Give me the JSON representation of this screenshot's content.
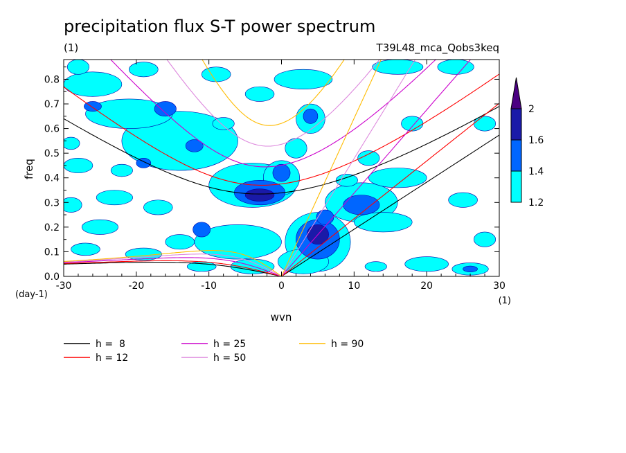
{
  "chart_data": {
    "type": "heatmap",
    "title": "precipitation flux S-T power spectrum",
    "subtitle_left": "(1)",
    "subtitle_right": "T39L48_mca_Qobs3keq",
    "xlabel": "wvn",
    "ylabel": "freq",
    "x_unit": "(1)",
    "y_unit": "(day-1)",
    "xlim": [
      -30,
      30
    ],
    "ylim": [
      0,
      0.88
    ],
    "x_ticks": [
      -30,
      -20,
      -10,
      0,
      10,
      20,
      30
    ],
    "x_tick_labels": [
      "-30",
      "-20",
      "-10",
      "0",
      "10",
      "20",
      "30"
    ],
    "y_ticks": [
      0.0,
      0.1,
      0.2,
      0.3,
      0.4,
      0.5,
      0.6,
      0.7,
      0.8
    ],
    "y_tick_labels": [
      "0.0",
      "0.1",
      "0.2",
      "0.3",
      "0.4",
      "0.5",
      "0.6",
      "0.7",
      "0.8"
    ],
    "colorbar": {
      "levels": [
        1.2,
        1.4,
        1.6,
        2
      ],
      "labels": [
        "1.2",
        "1.4",
        "1.6",
        "2"
      ],
      "colors": [
        "#00ffff",
        "#0066ff",
        "#1a1aa8",
        "#4b0082"
      ]
    },
    "dispersion_curves": [
      {
        "name": "h =  8",
        "h": 8,
        "color": "#000000"
      },
      {
        "name": "h = 12",
        "h": 12,
        "color": "#ff0000"
      },
      {
        "name": "h = 25",
        "h": 25,
        "color": "#cc00cc"
      },
      {
        "name": "h = 50",
        "h": 50,
        "color": "#dd88dd"
      },
      {
        "name": "h = 90",
        "h": 90,
        "color": "#ffbb00"
      }
    ],
    "blobs": [
      {
        "x": -3,
        "y": 0.33,
        "rx": 2.0,
        "ry": 0.025,
        "level": 3
      },
      {
        "x": -3,
        "y": 0.34,
        "rx": 3.5,
        "ry": 0.05,
        "level": 2
      },
      {
        "x": -4,
        "y": 0.37,
        "rx": 6.0,
        "ry": 0.09,
        "level": 1
      },
      {
        "x": 0,
        "y": 0.42,
        "rx": 1.2,
        "ry": 0.035,
        "level": 2
      },
      {
        "x": 0,
        "y": 0.4,
        "rx": 2.5,
        "ry": 0.07,
        "level": 1
      },
      {
        "x": -14,
        "y": 0.55,
        "rx": 8,
        "ry": 0.12,
        "level": 1
      },
      {
        "x": -16,
        "y": 0.68,
        "rx": 1.5,
        "ry": 0.03,
        "level": 2
      },
      {
        "x": -12,
        "y": 0.53,
        "rx": 1.2,
        "ry": 0.025,
        "level": 2
      },
      {
        "x": -21,
        "y": 0.66,
        "rx": 6,
        "ry": 0.06,
        "level": 1
      },
      {
        "x": -26,
        "y": 0.78,
        "rx": 4,
        "ry": 0.05,
        "level": 1
      },
      {
        "x": -26,
        "y": 0.69,
        "rx": 1.2,
        "ry": 0.02,
        "level": 2
      },
      {
        "x": 4,
        "y": 0.65,
        "rx": 1.0,
        "ry": 0.03,
        "level": 2
      },
      {
        "x": 4,
        "y": 0.64,
        "rx": 2.0,
        "ry": 0.06,
        "level": 1
      },
      {
        "x": 2,
        "y": 0.52,
        "rx": 1.5,
        "ry": 0.04,
        "level": 1
      },
      {
        "x": 5,
        "y": 0.17,
        "rx": 1.5,
        "ry": 0.04,
        "level": 3
      },
      {
        "x": 5,
        "y": 0.15,
        "rx": 3.0,
        "ry": 0.08,
        "level": 2
      },
      {
        "x": 5,
        "y": 0.14,
        "rx": 4.5,
        "ry": 0.12,
        "level": 1
      },
      {
        "x": 3,
        "y": 0.06,
        "rx": 3.5,
        "ry": 0.05,
        "level": 1
      },
      {
        "x": -6,
        "y": 0.14,
        "rx": 6,
        "ry": 0.07,
        "level": 1
      },
      {
        "x": -11,
        "y": 0.19,
        "rx": 1.2,
        "ry": 0.03,
        "level": 2
      },
      {
        "x": -4,
        "y": 0.04,
        "rx": 3,
        "ry": 0.03,
        "level": 1
      },
      {
        "x": 11,
        "y": 0.29,
        "rx": 2.5,
        "ry": 0.04,
        "level": 2
      },
      {
        "x": 11,
        "y": 0.3,
        "rx": 5,
        "ry": 0.08,
        "level": 1
      },
      {
        "x": 16,
        "y": 0.4,
        "rx": 4,
        "ry": 0.04,
        "level": 1
      },
      {
        "x": 14,
        "y": 0.22,
        "rx": 4,
        "ry": 0.04,
        "level": 1
      },
      {
        "x": 20,
        "y": 0.05,
        "rx": 3,
        "ry": 0.03,
        "level": 1
      },
      {
        "x": 26,
        "y": 0.03,
        "rx": 2.5,
        "ry": 0.025,
        "level": 1
      },
      {
        "x": 26,
        "y": 0.03,
        "rx": 1.0,
        "ry": 0.012,
        "level": 2
      },
      {
        "x": -25,
        "y": 0.2,
        "rx": 2.5,
        "ry": 0.03,
        "level": 1
      },
      {
        "x": -29,
        "y": 0.29,
        "rx": 1.5,
        "ry": 0.03,
        "level": 1
      },
      {
        "x": -23,
        "y": 0.32,
        "rx": 2.5,
        "ry": 0.03,
        "level": 1
      },
      {
        "x": -17,
        "y": 0.28,
        "rx": 2.0,
        "ry": 0.03,
        "level": 1
      },
      {
        "x": -14,
        "y": 0.14,
        "rx": 2.0,
        "ry": 0.03,
        "level": 1
      },
      {
        "x": -19,
        "y": 0.09,
        "rx": 2.5,
        "ry": 0.025,
        "level": 1
      },
      {
        "x": -27,
        "y": 0.11,
        "rx": 2.0,
        "ry": 0.025,
        "level": 1
      },
      {
        "x": -28,
        "y": 0.45,
        "rx": 2.0,
        "ry": 0.03,
        "level": 1
      },
      {
        "x": -22,
        "y": 0.43,
        "rx": 1.5,
        "ry": 0.025,
        "level": 1
      },
      {
        "x": -19,
        "y": 0.46,
        "rx": 1.0,
        "ry": 0.02,
        "level": 2
      },
      {
        "x": 3,
        "y": 0.8,
        "rx": 4.0,
        "ry": 0.04,
        "level": 1
      },
      {
        "x": 16,
        "y": 0.85,
        "rx": 3.5,
        "ry": 0.03,
        "level": 1
      },
      {
        "x": 24,
        "y": 0.85,
        "rx": 2.5,
        "ry": 0.03,
        "level": 1
      },
      {
        "x": -3,
        "y": 0.74,
        "rx": 2.0,
        "ry": 0.03,
        "level": 1
      },
      {
        "x": -9,
        "y": 0.82,
        "rx": 2.0,
        "ry": 0.03,
        "level": 1
      },
      {
        "x": -19,
        "y": 0.84,
        "rx": 2.0,
        "ry": 0.03,
        "level": 1
      },
      {
        "x": -28,
        "y": 0.85,
        "rx": 1.5,
        "ry": 0.03,
        "level": 1
      },
      {
        "x": 28,
        "y": 0.62,
        "rx": 1.5,
        "ry": 0.03,
        "level": 1
      },
      {
        "x": 25,
        "y": 0.31,
        "rx": 2.0,
        "ry": 0.03,
        "level": 1
      },
      {
        "x": 28,
        "y": 0.15,
        "rx": 1.5,
        "ry": 0.03,
        "level": 1
      },
      {
        "x": 18,
        "y": 0.62,
        "rx": 1.5,
        "ry": 0.03,
        "level": 1
      },
      {
        "x": 12,
        "y": 0.48,
        "rx": 1.5,
        "ry": 0.03,
        "level": 1
      },
      {
        "x": 9,
        "y": 0.39,
        "rx": 1.5,
        "ry": 0.025,
        "level": 1
      },
      {
        "x": 6,
        "y": 0.24,
        "rx": 1.2,
        "ry": 0.03,
        "level": 2
      },
      {
        "x": -8,
        "y": 0.62,
        "rx": 1.5,
        "ry": 0.025,
        "level": 1
      },
      {
        "x": -29,
        "y": 0.54,
        "rx": 1.2,
        "ry": 0.025,
        "level": 1
      },
      {
        "x": -11,
        "y": 0.04,
        "rx": 2.0,
        "ry": 0.02,
        "level": 1
      },
      {
        "x": 13,
        "y": 0.04,
        "rx": 1.5,
        "ry": 0.02,
        "level": 1
      }
    ]
  }
}
